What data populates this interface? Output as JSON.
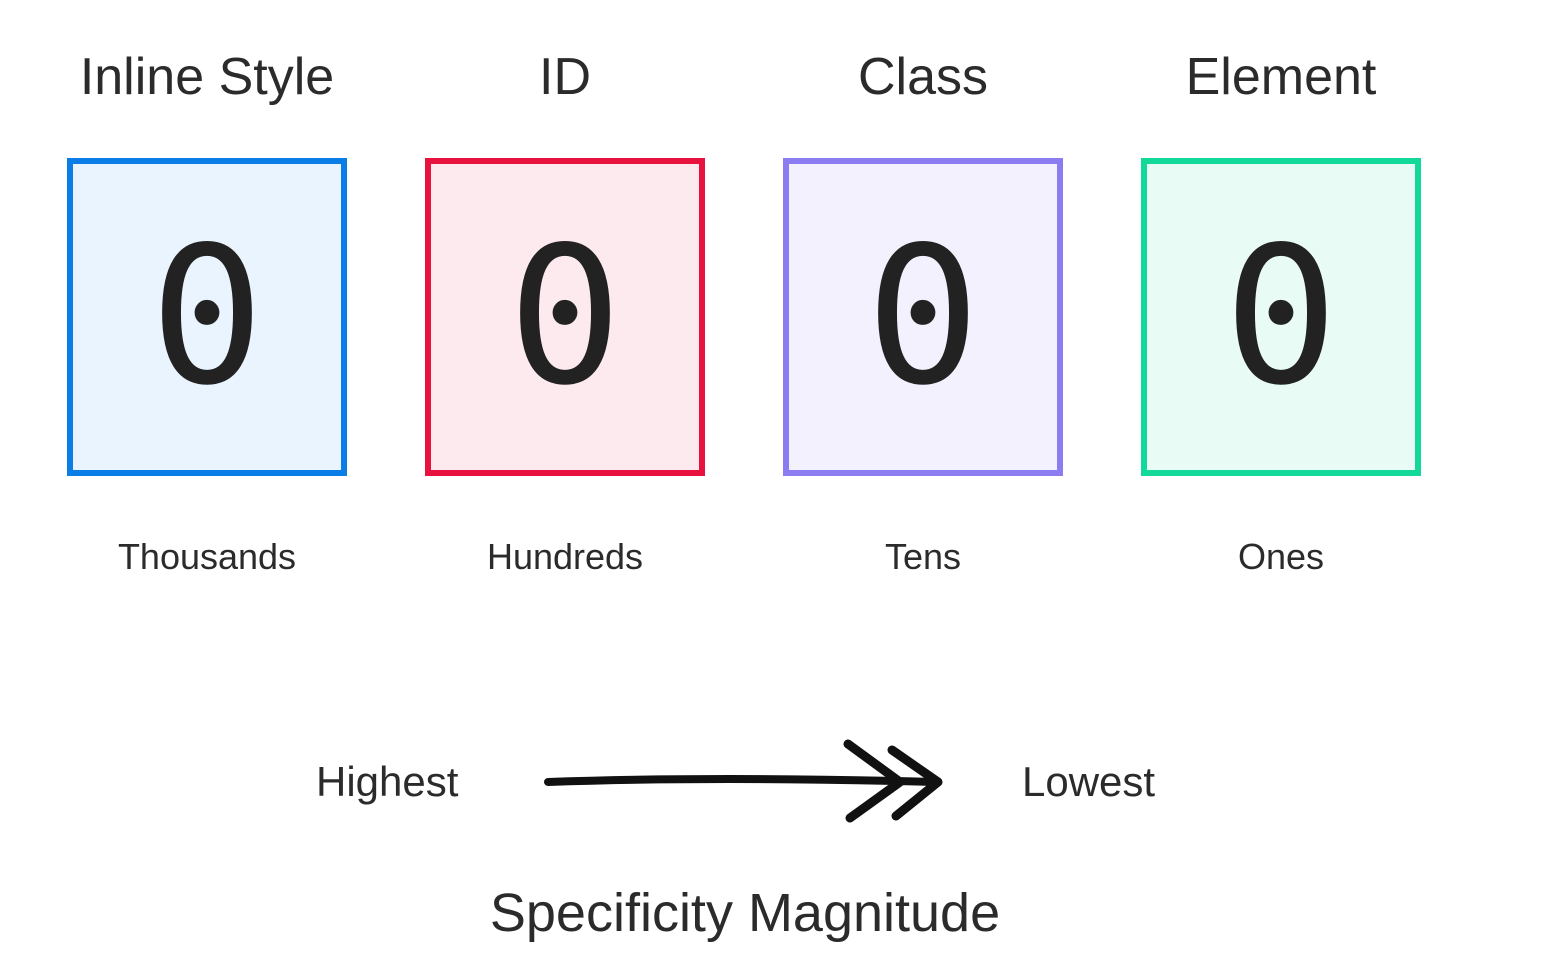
{
  "categories": [
    {
      "title": "Inline Style",
      "digit": "0",
      "place": "Thousands",
      "border": "#0a7ee6",
      "fill": "#eaf4fe"
    },
    {
      "title": "ID",
      "digit": "0",
      "place": "Hundreds",
      "border": "#e8123e",
      "fill": "#fdeaee"
    },
    {
      "title": "Class",
      "digit": "0",
      "place": "Tens",
      "border": "#8b7cf2",
      "fill": "#f3f1fe"
    },
    {
      "title": "Element",
      "digit": "0",
      "place": "Ones",
      "border": "#12d89a",
      "fill": "#e8fbf5"
    }
  ],
  "scale": {
    "high_label": "Highest",
    "low_label": "Lowest"
  },
  "caption": "Specificity Magnitude"
}
